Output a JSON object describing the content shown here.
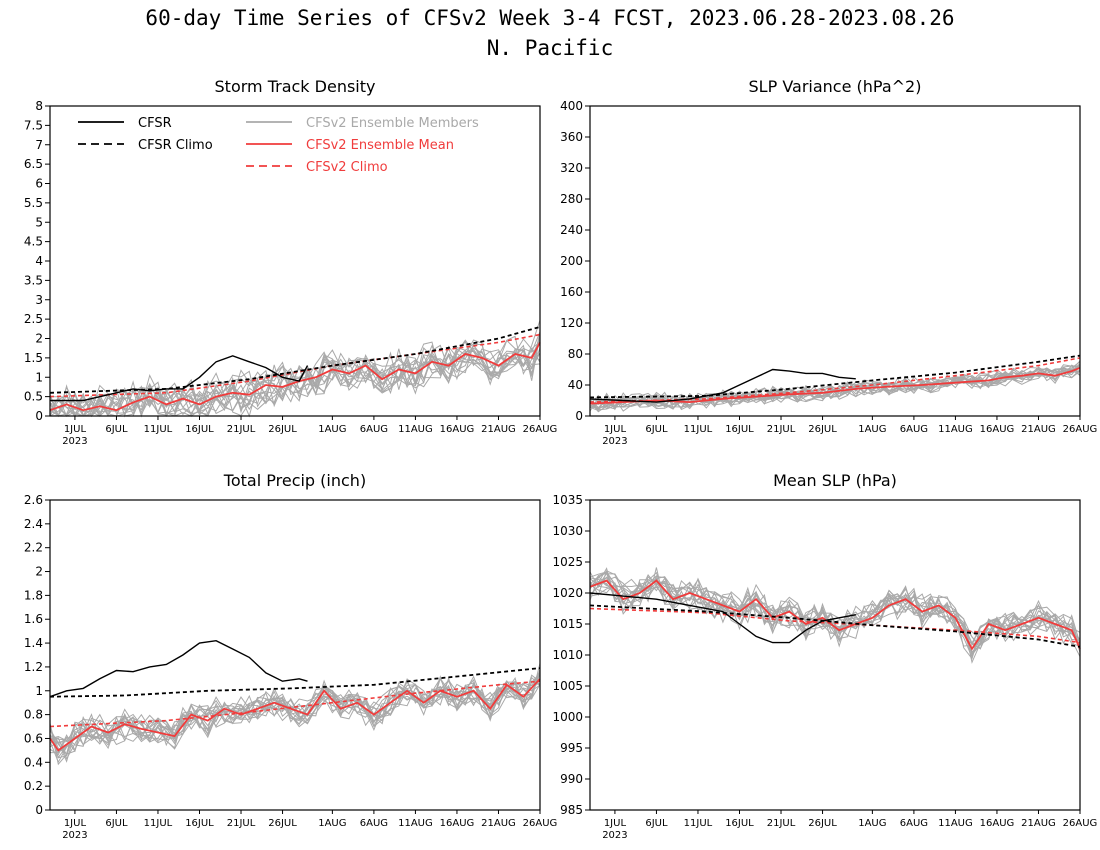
{
  "figure": {
    "title": "60-day Time Series of CFSv2 Week 3-4 FCST, 2023.06.28-2023.08.26",
    "subtitle": "N. Pacific"
  },
  "legend": [
    {
      "label": "CFSR",
      "color": "#000000",
      "dashed": false
    },
    {
      "label": "CFSR Climo",
      "color": "#000000",
      "dashed": true
    },
    {
      "label": "CFSv2 Ensemble Members",
      "color": "#a9a9a9",
      "dashed": false
    },
    {
      "label": "CFSv2 Ensemble Mean",
      "color": "#f03c3c",
      "dashed": false
    },
    {
      "label": "CFSv2 Climo",
      "color": "#f03c3c",
      "dashed": true
    }
  ],
  "x_ticks": [
    {
      "day": 4,
      "label": "1JUL",
      "label2": "2023"
    },
    {
      "day": 9,
      "label": "6JUL"
    },
    {
      "day": 14,
      "label": "11JUL"
    },
    {
      "day": 19,
      "label": "16JUL"
    },
    {
      "day": 24,
      "label": "21JUL"
    },
    {
      "day": 29,
      "label": "26JUL"
    },
    {
      "day": 35,
      "label": "1AUG"
    },
    {
      "day": 40,
      "label": "6AUG"
    },
    {
      "day": 45,
      "label": "11AUG"
    },
    {
      "day": 50,
      "label": "16AUG"
    },
    {
      "day": 55,
      "label": "21AUG"
    },
    {
      "day": 60,
      "label": "26AUG"
    }
  ],
  "chart_data": [
    {
      "type": "line",
      "title": "Storm Track Density",
      "show_legend": true,
      "xlim": [
        1,
        60
      ],
      "ylim": [
        0,
        8
      ],
      "y_ticks": [
        "0",
        "0.5",
        "1",
        "1.5",
        "2",
        "2.5",
        "3",
        "3.5",
        "4",
        "4.5",
        "5",
        "5.5",
        "6",
        "6.5",
        "7",
        "7.5",
        "8"
      ],
      "spread": {
        "noise": 0.45,
        "min": 0
      },
      "series": [
        {
          "name": "CFSv2 Ensemble Mean",
          "style": "mean",
          "points": [
            [
              1,
              0.15
            ],
            [
              3,
              0.3
            ],
            [
              5,
              0.15
            ],
            [
              7,
              0.25
            ],
            [
              9,
              0.15
            ],
            [
              11,
              0.35
            ],
            [
              13,
              0.5
            ],
            [
              15,
              0.3
            ],
            [
              17,
              0.45
            ],
            [
              19,
              0.3
            ],
            [
              21,
              0.5
            ],
            [
              23,
              0.6
            ],
            [
              25,
              0.55
            ],
            [
              27,
              0.8
            ],
            [
              29,
              0.75
            ],
            [
              31,
              0.9
            ],
            [
              33,
              1.0
            ],
            [
              35,
              1.2
            ],
            [
              37,
              1.1
            ],
            [
              39,
              1.3
            ],
            [
              41,
              0.95
            ],
            [
              43,
              1.2
            ],
            [
              45,
              1.1
            ],
            [
              47,
              1.4
            ],
            [
              49,
              1.3
            ],
            [
              51,
              1.6
            ],
            [
              53,
              1.5
            ],
            [
              55,
              1.3
            ],
            [
              57,
              1.6
            ],
            [
              59,
              1.5
            ],
            [
              60,
              1.9
            ]
          ]
        },
        {
          "name": "CFSv2 Climo",
          "style": "model-climo",
          "points": [
            [
              1,
              0.5
            ],
            [
              15,
              0.6
            ],
            [
              25,
              0.9
            ],
            [
              35,
              1.3
            ],
            [
              45,
              1.6
            ],
            [
              55,
              1.9
            ],
            [
              60,
              2.1
            ]
          ]
        },
        {
          "name": "CFSR Climo",
          "style": "obs-climo",
          "points": [
            [
              1,
              0.6
            ],
            [
              15,
              0.7
            ],
            [
              25,
              0.95
            ],
            [
              35,
              1.3
            ],
            [
              45,
              1.6
            ],
            [
              55,
              2.0
            ],
            [
              60,
              2.3
            ]
          ]
        },
        {
          "name": "CFSR",
          "style": "obs",
          "points": [
            [
              1,
              0.4
            ],
            [
              5,
              0.4
            ],
            [
              9,
              0.6
            ],
            [
              11,
              0.7
            ],
            [
              13,
              0.65
            ],
            [
              15,
              0.7
            ],
            [
              17,
              0.7
            ],
            [
              19,
              1.0
            ],
            [
              21,
              1.4
            ],
            [
              23,
              1.55
            ],
            [
              25,
              1.4
            ],
            [
              27,
              1.25
            ],
            [
              29,
              1.0
            ],
            [
              31,
              0.9
            ],
            [
              32,
              1.3
            ]
          ]
        }
      ]
    },
    {
      "type": "line",
      "title": "SLP Variance (hPa^2)",
      "show_legend": false,
      "xlim": [
        1,
        60
      ],
      "ylim": [
        0,
        400
      ],
      "y_ticks": [
        "0",
        "40",
        "80",
        "120",
        "160",
        "200",
        "240",
        "280",
        "320",
        "360",
        "400"
      ],
      "spread": {
        "noise": 9,
        "min": 0
      },
      "series": [
        {
          "name": "CFSv2 Ensemble Mean",
          "style": "mean",
          "points": [
            [
              1,
              16
            ],
            [
              5,
              18
            ],
            [
              9,
              20
            ],
            [
              13,
              18
            ],
            [
              17,
              22
            ],
            [
              21,
              25
            ],
            [
              25,
              28
            ],
            [
              29,
              30
            ],
            [
              33,
              35
            ],
            [
              37,
              38
            ],
            [
              41,
              40
            ],
            [
              45,
              43
            ],
            [
              49,
              46
            ],
            [
              51,
              50
            ],
            [
              53,
              52
            ],
            [
              55,
              55
            ],
            [
              57,
              52
            ],
            [
              59,
              58
            ],
            [
              60,
              62
            ]
          ]
        },
        {
          "name": "CFSv2 Climo",
          "style": "model-climo",
          "points": [
            [
              1,
              18
            ],
            [
              15,
              22
            ],
            [
              25,
              30
            ],
            [
              35,
              40
            ],
            [
              45,
              52
            ],
            [
              55,
              65
            ],
            [
              60,
              75
            ]
          ]
        },
        {
          "name": "CFSR Climo",
          "style": "obs-climo",
          "points": [
            [
              1,
              24
            ],
            [
              15,
              26
            ],
            [
              25,
              35
            ],
            [
              35,
              46
            ],
            [
              45,
              56
            ],
            [
              55,
              70
            ],
            [
              60,
              78
            ]
          ]
        },
        {
          "name": "CFSR",
          "style": "obs",
          "points": [
            [
              1,
              22
            ],
            [
              5,
              20
            ],
            [
              9,
              18
            ],
            [
              13,
              22
            ],
            [
              17,
              30
            ],
            [
              19,
              40
            ],
            [
              21,
              50
            ],
            [
              23,
              60
            ],
            [
              25,
              58
            ],
            [
              27,
              55
            ],
            [
              29,
              55
            ],
            [
              31,
              50
            ],
            [
              33,
              48
            ]
          ]
        }
      ]
    },
    {
      "type": "line",
      "title": "Total Precip (inch)",
      "show_legend": false,
      "xlim": [
        1,
        60
      ],
      "ylim": [
        0,
        2.6
      ],
      "y_ticks": [
        "0",
        "0.2",
        "0.4",
        "0.6",
        "0.8",
        "1",
        "1.2",
        "1.4",
        "1.6",
        "1.8",
        "2",
        "2.2",
        "2.4",
        "2.6"
      ],
      "spread": {
        "noise": 0.11,
        "min": 0
      },
      "series": [
        {
          "name": "CFSv2 Ensemble Mean",
          "style": "mean",
          "points": [
            [
              1,
              0.6
            ],
            [
              2,
              0.5
            ],
            [
              4,
              0.6
            ],
            [
              6,
              0.7
            ],
            [
              8,
              0.65
            ],
            [
              10,
              0.72
            ],
            [
              12,
              0.68
            ],
            [
              14,
              0.65
            ],
            [
              16,
              0.62
            ],
            [
              18,
              0.8
            ],
            [
              20,
              0.75
            ],
            [
              22,
              0.85
            ],
            [
              24,
              0.8
            ],
            [
              26,
              0.85
            ],
            [
              28,
              0.9
            ],
            [
              30,
              0.85
            ],
            [
              32,
              0.8
            ],
            [
              34,
              1.0
            ],
            [
              36,
              0.85
            ],
            [
              38,
              0.9
            ],
            [
              40,
              0.8
            ],
            [
              42,
              0.9
            ],
            [
              44,
              1.0
            ],
            [
              46,
              0.9
            ],
            [
              48,
              1.0
            ],
            [
              50,
              0.95
            ],
            [
              52,
              1.0
            ],
            [
              54,
              0.85
            ],
            [
              56,
              1.05
            ],
            [
              58,
              0.95
            ],
            [
              60,
              1.1
            ]
          ]
        },
        {
          "name": "CFSv2 Climo",
          "style": "model-climo",
          "points": [
            [
              1,
              0.7
            ],
            [
              15,
              0.75
            ],
            [
              25,
              0.82
            ],
            [
              35,
              0.9
            ],
            [
              45,
              0.98
            ],
            [
              55,
              1.05
            ],
            [
              60,
              1.08
            ]
          ]
        },
        {
          "name": "CFSR Climo",
          "style": "obs-climo",
          "points": [
            [
              1,
              0.95
            ],
            [
              10,
              0.96
            ],
            [
              20,
              1.0
            ],
            [
              30,
              1.02
            ],
            [
              40,
              1.05
            ],
            [
              50,
              1.12
            ],
            [
              60,
              1.19
            ]
          ]
        },
        {
          "name": "CFSR",
          "style": "obs",
          "points": [
            [
              1,
              0.95
            ],
            [
              3,
              1.0
            ],
            [
              5,
              1.02
            ],
            [
              7,
              1.1
            ],
            [
              9,
              1.17
            ],
            [
              11,
              1.16
            ],
            [
              13,
              1.2
            ],
            [
              15,
              1.22
            ],
            [
              17,
              1.3
            ],
            [
              19,
              1.4
            ],
            [
              21,
              1.42
            ],
            [
              23,
              1.35
            ],
            [
              25,
              1.28
            ],
            [
              27,
              1.15
            ],
            [
              29,
              1.08
            ],
            [
              31,
              1.1
            ],
            [
              32,
              1.08
            ]
          ]
        }
      ]
    },
    {
      "type": "line",
      "title": "Mean SLP (hPa)",
      "show_legend": false,
      "xlim": [
        1,
        60
      ],
      "ylim": [
        985,
        1035
      ],
      "y_ticks": [
        "985",
        "990",
        "995",
        "1000",
        "1005",
        "1010",
        "1015",
        "1020",
        "1025",
        "1030",
        "1035"
      ],
      "spread": {
        "noise": 2.2,
        "min": 985
      },
      "series": [
        {
          "name": "CFSv2 Ensemble Mean",
          "style": "mean",
          "points": [
            [
              1,
              1021
            ],
            [
              3,
              1022
            ],
            [
              5,
              1019
            ],
            [
              7,
              1020
            ],
            [
              9,
              1022
            ],
            [
              11,
              1019
            ],
            [
              13,
              1020
            ],
            [
              15,
              1019
            ],
            [
              17,
              1018
            ],
            [
              19,
              1017
            ],
            [
              21,
              1019
            ],
            [
              23,
              1016
            ],
            [
              25,
              1017
            ],
            [
              27,
              1015
            ],
            [
              29,
              1016
            ],
            [
              31,
              1014
            ],
            [
              33,
              1015
            ],
            [
              35,
              1016
            ],
            [
              37,
              1018
            ],
            [
              39,
              1019
            ],
            [
              41,
              1017
            ],
            [
              43,
              1018
            ],
            [
              45,
              1016
            ],
            [
              47,
              1011
            ],
            [
              49,
              1015
            ],
            [
              51,
              1014
            ],
            [
              53,
              1015
            ],
            [
              55,
              1016
            ],
            [
              57,
              1015
            ],
            [
              59,
              1014
            ],
            [
              60,
              1011
            ]
          ]
        },
        {
          "name": "CFSv2 Climo",
          "style": "model-climo",
          "points": [
            [
              1,
              1017.5
            ],
            [
              15,
              1016.8
            ],
            [
              25,
              1015.5
            ],
            [
              35,
              1014.8
            ],
            [
              45,
              1014
            ],
            [
              55,
              1013
            ],
            [
              60,
              1012
            ]
          ]
        },
        {
          "name": "CFSR Climo",
          "style": "obs-climo",
          "points": [
            [
              1,
              1018
            ],
            [
              15,
              1017
            ],
            [
              25,
              1016
            ],
            [
              35,
              1014.8
            ],
            [
              45,
              1013.8
            ],
            [
              55,
              1012.5
            ],
            [
              60,
              1011.3
            ]
          ]
        },
        {
          "name": "CFSR",
          "style": "obs",
          "points": [
            [
              1,
              1020
            ],
            [
              5,
              1019.5
            ],
            [
              9,
              1019
            ],
            [
              13,
              1018
            ],
            [
              17,
              1017
            ],
            [
              19,
              1015
            ],
            [
              21,
              1013
            ],
            [
              23,
              1012
            ],
            [
              25,
              1012
            ],
            [
              27,
              1014
            ],
            [
              29,
              1015.5
            ],
            [
              31,
              1016
            ],
            [
              33,
              1016.5
            ]
          ]
        }
      ]
    }
  ]
}
